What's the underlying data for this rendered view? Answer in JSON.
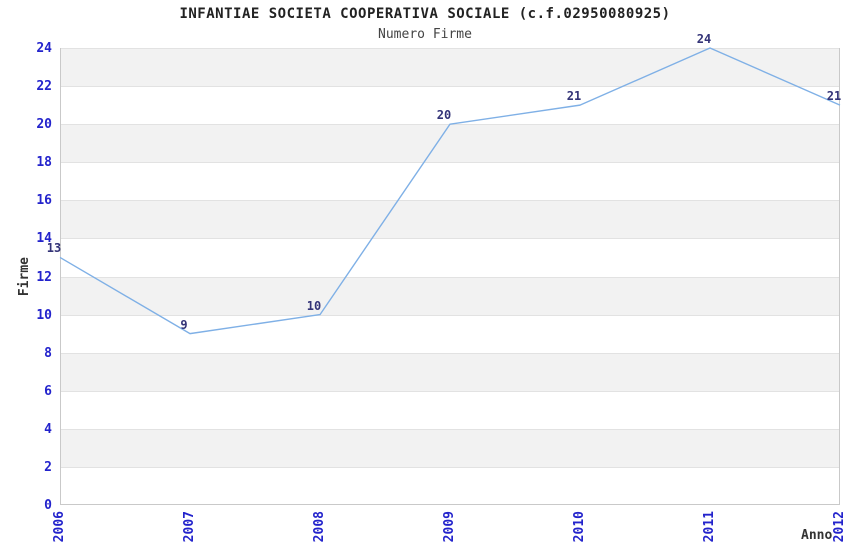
{
  "header": {
    "title": "INFANTIAE SOCIETA COOPERATIVA SOCIALE (c.f.02950080925)",
    "subtitle": "Numero Firme"
  },
  "chart_data": {
    "type": "line",
    "title": "INFANTIAE SOCIETA COOPERATIVA SOCIALE (c.f.02950080925)",
    "subtitle": "Numero Firme",
    "xlabel": "Anno",
    "ylabel": "Firme",
    "categories": [
      "2006",
      "2007",
      "2008",
      "2009",
      "2010",
      "2011",
      "2012"
    ],
    "series": [
      {
        "name": "Numero Firme",
        "values": [
          13,
          9,
          10,
          20,
          21,
          24,
          21
        ]
      }
    ],
    "point_labels": [
      "13",
      "9",
      "10",
      "20",
      "21",
      "24",
      "21"
    ],
    "ylim": [
      0,
      24
    ],
    "ytick_step": 2,
    "yticks": [
      0,
      2,
      4,
      6,
      8,
      10,
      12,
      14,
      16,
      18,
      20,
      22,
      24
    ],
    "legend": "none",
    "grid": "horizontal gridlines every 2 units with alternating shaded bands",
    "colors": {
      "line": "#7fb0e6",
      "tick_label": "#2323cc",
      "point_label": "#333377",
      "band_fill": "#f2f2f2",
      "gridline": "#e2e2e2",
      "axis": "#c9c9c9",
      "title": "#222222",
      "subtitle": "#444444",
      "axis_title": "#333333",
      "background": "#ffffff"
    }
  }
}
